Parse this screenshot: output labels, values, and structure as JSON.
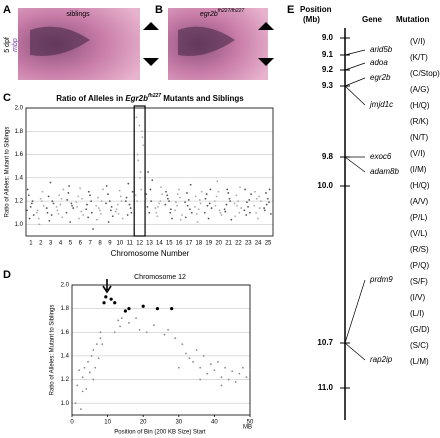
{
  "panels": {
    "a": {
      "letter": "A",
      "label": "siblings",
      "stage": "5 dpf",
      "probe": "mbp"
    },
    "b": {
      "letter": "B",
      "label": [
        "egr2b",
        "fh227/fh227"
      ]
    },
    "c": {
      "letter": "C"
    },
    "d": {
      "letter": "D"
    },
    "e": {
      "letter": "E",
      "headers": [
        "Position",
        "(Mb)",
        "Gene",
        "Mutation"
      ],
      "positions": [
        "9.0",
        "9.1",
        "9.2",
        "9.3",
        "9.8",
        "10.0",
        "10.7",
        "11.0"
      ],
      "genes": [
        {
          "name": "arid5b",
          "mutations": [
            "(V/I)"
          ]
        },
        {
          "name": "adoa",
          "mutations": [
            "(K/T)"
          ]
        },
        {
          "name": "egr2b",
          "mutations": [
            "(C/Stop)"
          ]
        },
        {
          "name": "jmjd1c",
          "mutations": [
            "(A/G)",
            "(H/Q)",
            "(R/K)",
            "(N/T)",
            "(V/I)"
          ]
        },
        {
          "name": "exoc6",
          "mutations": [
            "(I/M)"
          ]
        },
        {
          "name": "adam8b",
          "mutations": [
            "(H/Q)",
            "(A/V)",
            "(P/L)",
            "(V/L)",
            "(R/S)",
            "(P/Q)"
          ]
        },
        {
          "name": "prdm9",
          "mutations": [
            "(S/F)",
            "(I/V)",
            "(L/I)",
            "(G/D)",
            "(S/C)"
          ]
        },
        {
          "name": "rap2ip",
          "mutations": [
            "(L/M)"
          ]
        }
      ]
    }
  },
  "chart_data": [
    {
      "type": "strip",
      "title": [
        "Ratio of Alleles in ",
        "Egr2b",
        "fh227",
        " Mutants and Siblings"
      ],
      "x_label": "Chromosome Number",
      "y_label": "Ratio of Alleles: Mutant to Siblings",
      "colors": [
        "#555555",
        "#aaaaaa"
      ],
      "categories": [
        "1",
        "2",
        "3",
        "4",
        "5",
        "6",
        "7",
        "8",
        "9",
        "10",
        "11",
        "12",
        "13",
        "14",
        "15",
        "16",
        "17",
        "18",
        "19",
        "20",
        "21",
        "22",
        "23",
        "24",
        "25"
      ],
      "values": [
        [
          1.12,
          1.18,
          1.25,
          1.08,
          1.15,
          1.3,
          1.2,
          1.05
        ],
        [
          1.1,
          1.2,
          1.05,
          1.16,
          1.22,
          1.12,
          1.28,
          1.0
        ],
        [
          1.14,
          1.08,
          1.24,
          1.18,
          1.36,
          1.1,
          1.2,
          1.03
        ],
        [
          1.15,
          1.22,
          1.09,
          1.3,
          1.17,
          1.12,
          1.06,
          1.25
        ],
        [
          1.1,
          1.18,
          1.27,
          1.14,
          1.02,
          1.21,
          1.16,
          1.33
        ],
        [
          1.19,
          1.11,
          1.24,
          1.08,
          1.31,
          1.15,
          1.22,
          1.05
        ],
        [
          1.13,
          1.2,
          1.06,
          0.96,
          1.25,
          1.17,
          1.1,
          1.28
        ],
        [
          1.16,
          1.09,
          1.23,
          1.3,
          1.12,
          1.04,
          1.2,
          1.14
        ],
        [
          1.18,
          1.12,
          1.26,
          1.07,
          1.2,
          1.33,
          1.15,
          1.02
        ],
        [
          1.11,
          1.24,
          1.17,
          1.05,
          1.29,
          1.13,
          1.2,
          1.09
        ],
        [
          1.2,
          1.14,
          1.08,
          1.28,
          1.17,
          1.23,
          1.1,
          1.35
        ],
        [
          1.25,
          1.45,
          1.6,
          1.75,
          1.85,
          1.92,
          1.3,
          1.55,
          1.68,
          1.4,
          1.2,
          1.8
        ],
        [
          1.22,
          1.3,
          1.15,
          1.38,
          1.1,
          1.26,
          1.2,
          1.45
        ],
        [
          1.14,
          1.2,
          1.07,
          1.26,
          1.18,
          1.1,
          1.32,
          1.15
        ],
        [
          1.17,
          1.1,
          1.25,
          1.05,
          1.2,
          1.28,
          1.13,
          1.22
        ],
        [
          1.12,
          1.23,
          1.16,
          1.08,
          1.3,
          1.19,
          1.04,
          1.26
        ],
        [
          1.19,
          1.13,
          1.27,
          1.1,
          1.21,
          1.06,
          1.34,
          1.16
        ],
        [
          1.15,
          1.21,
          1.09,
          1.28,
          1.13,
          1.24,
          1.18,
          1.02
        ],
        [
          1.1,
          1.18,
          1.26,
          1.14,
          1.05,
          1.22,
          1.3,
          1.16
        ],
        [
          1.2,
          1.12,
          1.24,
          1.08,
          1.28,
          1.16,
          1.1,
          1.37
        ],
        [
          1.13,
          1.22,
          1.17,
          1.04,
          1.27,
          1.11,
          1.2,
          1.3
        ],
        [
          1.18,
          1.1,
          1.25,
          1.14,
          1.2,
          1.07,
          1.32,
          1.16
        ],
        [
          1.12,
          1.21,
          1.08,
          1.26,
          1.15,
          1.3,
          1.1,
          1.19
        ],
        [
          1.16,
          1.24,
          1.1,
          1.2,
          1.05,
          1.28,
          1.14,
          1.22
        ],
        [
          1.14,
          1.19,
          1.27,
          1.09,
          1.22,
          1.12,
          1.3,
          1.17
        ]
      ],
      "ylim": [
        0.9,
        2.0
      ],
      "yticks": [
        {
          "value": 1,
          "label": "1.0"
        },
        1.2,
        1.4,
        1.6,
        1.8,
        {
          "value": 2,
          "label": "2.0"
        }
      ],
      "grid": true
    },
    {
      "type": "scatter",
      "title": "Chromosome 12",
      "x_label": "Position of Bin (200 KB Size) Start",
      "x_unit": "MB",
      "y_label": "Ratio of Alleles: Mutant to Siblings",
      "series": [
        {
          "color": "#888888",
          "x": [
            1,
            1.5,
            2,
            2.5,
            3,
            3.5,
            4,
            4.5,
            5,
            5.5,
            6,
            6.5,
            7,
            7.5,
            8,
            8.5,
            12,
            13,
            13.5,
            14,
            16,
            18,
            19,
            21,
            23,
            26,
            27,
            29,
            31,
            32,
            33,
            34,
            35,
            36,
            37,
            38,
            39,
            40,
            41,
            42,
            43,
            44,
            45,
            46,
            47,
            48,
            49,
            50,
            8,
            6,
            3,
            30,
            36,
            42
          ],
          "y": [
            1.0,
            1.15,
            1.28,
            0.95,
            1.22,
            1.3,
            1.12,
            1.35,
            1.26,
            1.4,
            1.45,
            1.3,
            1.5,
            1.38,
            1.55,
            1.5,
            1.6,
            1.7,
            1.65,
            1.72,
            1.68,
            1.72,
            1.62,
            1.6,
            1.66,
            1.58,
            1.62,
            1.55,
            1.5,
            1.42,
            1.38,
            1.35,
            1.45,
            1.3,
            1.4,
            1.25,
            1.33,
            1.28,
            1.35,
            1.22,
            1.3,
            1.2,
            1.27,
            1.18,
            1.25,
            1.3,
            1.22,
            1.28,
            1.6,
            1.2,
            1.1,
            1.3,
            1.2,
            1.15
          ]
        },
        {
          "color": "#000000",
          "x": [
            9,
            9.5,
            11,
            12,
            15,
            16,
            20,
            24,
            28
          ],
          "y": [
            1.85,
            1.9,
            1.88,
            1.85,
            1.78,
            1.8,
            1.82,
            1.8,
            1.8
          ]
        }
      ],
      "xlim": [
        0,
        50
      ],
      "xticks": [
        0,
        10,
        20,
        30,
        40,
        50
      ],
      "ylim": [
        0.9,
        2.0
      ],
      "yticks": [
        {
          "value": 1,
          "label": "1.0"
        },
        1.2,
        1.4,
        1.6,
        1.8,
        {
          "value": 2,
          "label": "2.0"
        }
      ],
      "grid": true
    }
  ]
}
